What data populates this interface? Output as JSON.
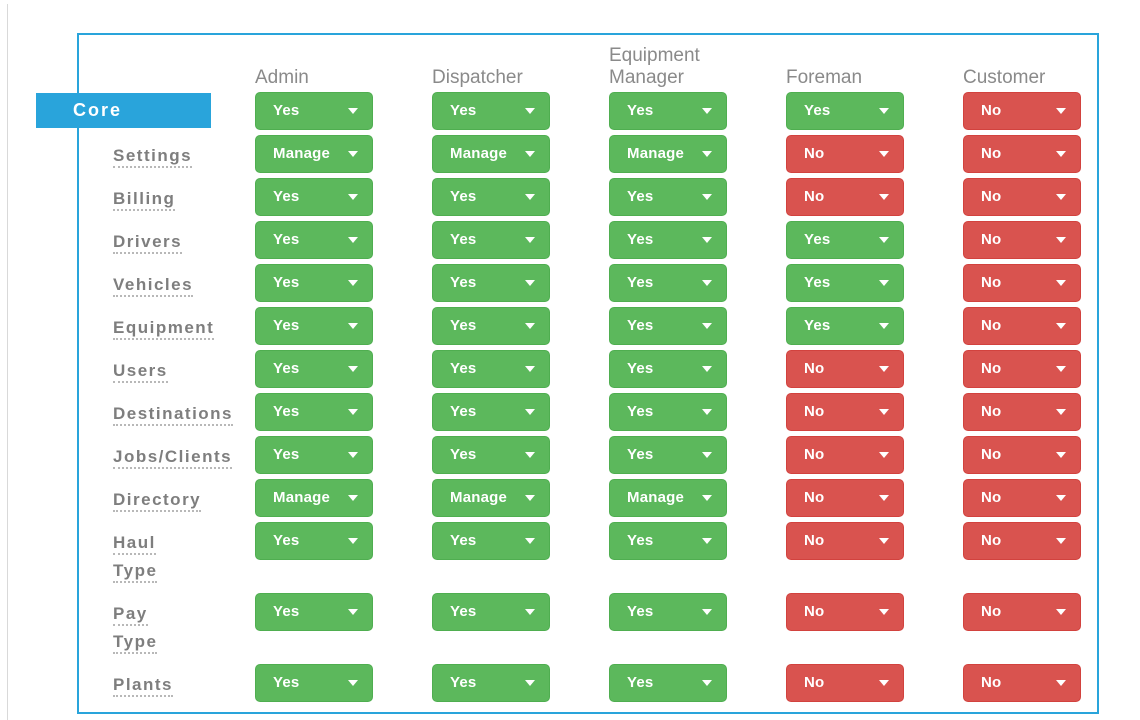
{
  "matrix": {
    "section_label": "Core",
    "columns": [
      "Admin",
      "Dispatcher",
      "Equipment Manager",
      "Foreman",
      "Customer"
    ],
    "rows": [
      {
        "label": "Core",
        "type": "section",
        "values": [
          "Yes",
          "Yes",
          "Yes",
          "Yes",
          "No"
        ]
      },
      {
        "label": "Settings",
        "type": "feature",
        "values": [
          "Manage",
          "Manage",
          "Manage",
          "No",
          "No"
        ]
      },
      {
        "label": "Billing",
        "type": "feature",
        "values": [
          "Yes",
          "Yes",
          "Yes",
          "No",
          "No"
        ]
      },
      {
        "label": "Drivers",
        "type": "feature",
        "values": [
          "Yes",
          "Yes",
          "Yes",
          "Yes",
          "No"
        ]
      },
      {
        "label": "Vehicles",
        "type": "feature",
        "values": [
          "Yes",
          "Yes",
          "Yes",
          "Yes",
          "No"
        ]
      },
      {
        "label": "Equipment",
        "type": "feature",
        "values": [
          "Yes",
          "Yes",
          "Yes",
          "Yes",
          "No"
        ]
      },
      {
        "label": "Users",
        "type": "feature",
        "values": [
          "Yes",
          "Yes",
          "Yes",
          "No",
          "No"
        ]
      },
      {
        "label": "Destinations",
        "type": "feature",
        "values": [
          "Yes",
          "Yes",
          "Yes",
          "No",
          "No"
        ]
      },
      {
        "label": "Jobs/Clients",
        "type": "feature",
        "values": [
          "Yes",
          "Yes",
          "Yes",
          "No",
          "No"
        ]
      },
      {
        "label": "Directory",
        "type": "feature",
        "values": [
          "Manage",
          "Manage",
          "Manage",
          "No",
          "No"
        ]
      },
      {
        "label": "Haul Type",
        "type": "feature",
        "values": [
          "Yes",
          "Yes",
          "Yes",
          "No",
          "No"
        ]
      },
      {
        "label": "Pay Type",
        "type": "feature",
        "values": [
          "Yes",
          "Yes",
          "Yes",
          "No",
          "No"
        ]
      },
      {
        "label": "Plants",
        "type": "feature",
        "values": [
          "Yes",
          "Yes",
          "Yes",
          "No",
          "No"
        ]
      }
    ],
    "value_styles": {
      "Yes": "green",
      "Manage": "green",
      "No": "red"
    },
    "colors": {
      "accent_blue": "#29a4db",
      "yes_green": "#5cb85c",
      "no_red": "#d9534f",
      "header_gray": "#8a8a8a",
      "label_gray": "#7e7e7e"
    }
  }
}
